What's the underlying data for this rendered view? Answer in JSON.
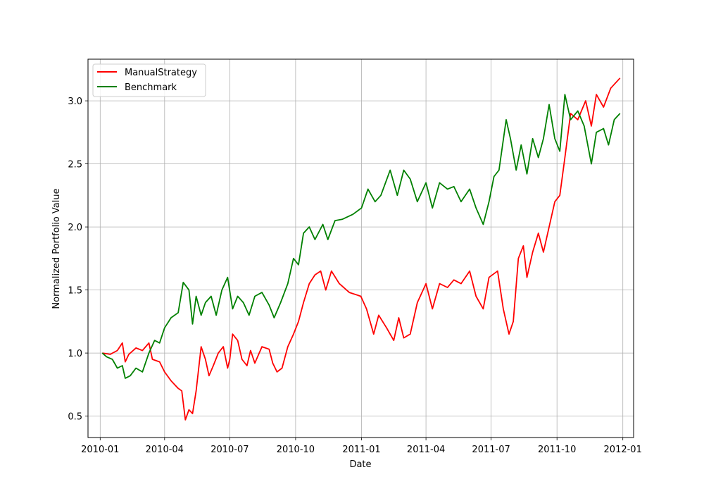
{
  "chart_data": {
    "type": "line",
    "title": "",
    "xlabel": "Date",
    "ylabel": "Normalized Portfolio Value",
    "x_range": [
      "2009-12-15",
      "2012-01-16"
    ],
    "ylim": [
      0.33,
      3.33
    ],
    "grid": true,
    "legend_position": "top-left",
    "x_ticks": [
      {
        "date": "2010-01-01",
        "label": "2010-01"
      },
      {
        "date": "2010-04-01",
        "label": "2010-04"
      },
      {
        "date": "2010-07-01",
        "label": "2010-07"
      },
      {
        "date": "2010-10-01",
        "label": "2010-10"
      },
      {
        "date": "2011-01-01",
        "label": "2011-01"
      },
      {
        "date": "2011-04-01",
        "label": "2011-04"
      },
      {
        "date": "2011-07-01",
        "label": "2011-07"
      },
      {
        "date": "2011-10-01",
        "label": "2011-10"
      },
      {
        "date": "2012-01-01",
        "label": "2012-01"
      }
    ],
    "y_ticks": [
      {
        "value": 0.5,
        "label": "0.5"
      },
      {
        "value": 1.0,
        "label": "1.0"
      },
      {
        "value": 1.5,
        "label": "1.5"
      },
      {
        "value": 2.0,
        "label": "2.0"
      },
      {
        "value": 2.5,
        "label": "2.5"
      },
      {
        "value": 3.0,
        "label": "3.0"
      }
    ],
    "series": [
      {
        "name": "ManualStrategy",
        "color": "#ff0000",
        "points": [
          [
            "2010-01-04",
            1.0
          ],
          [
            "2010-01-15",
            0.99
          ],
          [
            "2010-01-25",
            1.02
          ],
          [
            "2010-02-01",
            1.08
          ],
          [
            "2010-02-05",
            0.93
          ],
          [
            "2010-02-10",
            0.99
          ],
          [
            "2010-02-20",
            1.04
          ],
          [
            "2010-03-01",
            1.02
          ],
          [
            "2010-03-10",
            1.08
          ],
          [
            "2010-03-15",
            0.95
          ],
          [
            "2010-03-25",
            0.93
          ],
          [
            "2010-04-01",
            0.85
          ],
          [
            "2010-04-10",
            0.78
          ],
          [
            "2010-04-20",
            0.72
          ],
          [
            "2010-04-25",
            0.7
          ],
          [
            "2010-04-30",
            0.47
          ],
          [
            "2010-05-05",
            0.55
          ],
          [
            "2010-05-10",
            0.52
          ],
          [
            "2010-05-15",
            0.7
          ],
          [
            "2010-05-22",
            1.05
          ],
          [
            "2010-05-28",
            0.95
          ],
          [
            "2010-06-02",
            0.82
          ],
          [
            "2010-06-08",
            0.9
          ],
          [
            "2010-06-15",
            1.0
          ],
          [
            "2010-06-22",
            1.05
          ],
          [
            "2010-06-28",
            0.88
          ],
          [
            "2010-07-01",
            0.95
          ],
          [
            "2010-07-05",
            1.15
          ],
          [
            "2010-07-12",
            1.1
          ],
          [
            "2010-07-18",
            0.95
          ],
          [
            "2010-07-25",
            0.9
          ],
          [
            "2010-07-30",
            1.02
          ],
          [
            "2010-08-05",
            0.92
          ],
          [
            "2010-08-15",
            1.05
          ],
          [
            "2010-08-25",
            1.03
          ],
          [
            "2010-08-30",
            0.92
          ],
          [
            "2010-09-05",
            0.85
          ],
          [
            "2010-09-12",
            0.88
          ],
          [
            "2010-09-20",
            1.05
          ],
          [
            "2010-09-28",
            1.15
          ],
          [
            "2010-10-05",
            1.25
          ],
          [
            "2010-10-12",
            1.4
          ],
          [
            "2010-10-20",
            1.55
          ],
          [
            "2010-10-28",
            1.62
          ],
          [
            "2010-11-05",
            1.65
          ],
          [
            "2010-11-12",
            1.5
          ],
          [
            "2010-11-20",
            1.65
          ],
          [
            "2010-12-01",
            1.55
          ],
          [
            "2010-12-15",
            1.48
          ],
          [
            "2010-12-31",
            1.45
          ],
          [
            "2011-01-08",
            1.35
          ],
          [
            "2011-01-18",
            1.15
          ],
          [
            "2011-01-25",
            1.3
          ],
          [
            "2011-02-05",
            1.2
          ],
          [
            "2011-02-15",
            1.1
          ],
          [
            "2011-02-22",
            1.28
          ],
          [
            "2011-03-01",
            1.12
          ],
          [
            "2011-03-10",
            1.15
          ],
          [
            "2011-03-20",
            1.4
          ],
          [
            "2011-04-01",
            1.55
          ],
          [
            "2011-04-10",
            1.35
          ],
          [
            "2011-04-20",
            1.55
          ],
          [
            "2011-05-01",
            1.52
          ],
          [
            "2011-05-10",
            1.58
          ],
          [
            "2011-05-20",
            1.55
          ],
          [
            "2011-06-01",
            1.65
          ],
          [
            "2011-06-10",
            1.45
          ],
          [
            "2011-06-20",
            1.35
          ],
          [
            "2011-06-28",
            1.6
          ],
          [
            "2011-07-10",
            1.65
          ],
          [
            "2011-07-18",
            1.35
          ],
          [
            "2011-07-26",
            1.15
          ],
          [
            "2011-08-01",
            1.25
          ],
          [
            "2011-08-08",
            1.75
          ],
          [
            "2011-08-15",
            1.85
          ],
          [
            "2011-08-20",
            1.6
          ],
          [
            "2011-08-28",
            1.8
          ],
          [
            "2011-09-05",
            1.95
          ],
          [
            "2011-09-12",
            1.8
          ],
          [
            "2011-09-20",
            2.0
          ],
          [
            "2011-09-28",
            2.2
          ],
          [
            "2011-10-05",
            2.25
          ],
          [
            "2011-10-12",
            2.55
          ],
          [
            "2011-10-20",
            2.9
          ],
          [
            "2011-10-30",
            2.85
          ],
          [
            "2011-11-10",
            3.0
          ],
          [
            "2011-11-18",
            2.8
          ],
          [
            "2011-11-25",
            3.05
          ],
          [
            "2011-12-05",
            2.95
          ],
          [
            "2011-12-15",
            3.1
          ],
          [
            "2011-12-28",
            3.18
          ]
        ]
      },
      {
        "name": "Benchmark",
        "color": "#008000",
        "points": [
          [
            "2010-01-04",
            1.0
          ],
          [
            "2010-01-10",
            0.97
          ],
          [
            "2010-01-18",
            0.95
          ],
          [
            "2010-01-25",
            0.88
          ],
          [
            "2010-02-01",
            0.9
          ],
          [
            "2010-02-05",
            0.8
          ],
          [
            "2010-02-12",
            0.82
          ],
          [
            "2010-02-20",
            0.88
          ],
          [
            "2010-03-01",
            0.85
          ],
          [
            "2010-03-10",
            1.0
          ],
          [
            "2010-03-18",
            1.1
          ],
          [
            "2010-03-25",
            1.08
          ],
          [
            "2010-04-01",
            1.2
          ],
          [
            "2010-04-10",
            1.28
          ],
          [
            "2010-04-20",
            1.32
          ],
          [
            "2010-04-27",
            1.56
          ],
          [
            "2010-05-05",
            1.5
          ],
          [
            "2010-05-10",
            1.23
          ],
          [
            "2010-05-15",
            1.45
          ],
          [
            "2010-05-22",
            1.3
          ],
          [
            "2010-05-28",
            1.4
          ],
          [
            "2010-06-05",
            1.45
          ],
          [
            "2010-06-12",
            1.3
          ],
          [
            "2010-06-20",
            1.5
          ],
          [
            "2010-06-28",
            1.6
          ],
          [
            "2010-07-05",
            1.35
          ],
          [
            "2010-07-12",
            1.45
          ],
          [
            "2010-07-20",
            1.4
          ],
          [
            "2010-07-28",
            1.3
          ],
          [
            "2010-08-05",
            1.45
          ],
          [
            "2010-08-15",
            1.48
          ],
          [
            "2010-08-25",
            1.38
          ],
          [
            "2010-09-01",
            1.28
          ],
          [
            "2010-09-10",
            1.4
          ],
          [
            "2010-09-20",
            1.55
          ],
          [
            "2010-09-28",
            1.75
          ],
          [
            "2010-10-05",
            1.7
          ],
          [
            "2010-10-12",
            1.95
          ],
          [
            "2010-10-20",
            2.0
          ],
          [
            "2010-10-28",
            1.9
          ],
          [
            "2010-11-08",
            2.02
          ],
          [
            "2010-11-15",
            1.9
          ],
          [
            "2010-11-25",
            2.05
          ],
          [
            "2010-12-05",
            2.06
          ],
          [
            "2010-12-20",
            2.1
          ],
          [
            "2011-01-01",
            2.15
          ],
          [
            "2011-01-10",
            2.3
          ],
          [
            "2011-01-20",
            2.2
          ],
          [
            "2011-01-28",
            2.25
          ],
          [
            "2011-02-10",
            2.45
          ],
          [
            "2011-02-20",
            2.25
          ],
          [
            "2011-03-01",
            2.45
          ],
          [
            "2011-03-10",
            2.38
          ],
          [
            "2011-03-20",
            2.2
          ],
          [
            "2011-04-01",
            2.35
          ],
          [
            "2011-04-10",
            2.15
          ],
          [
            "2011-04-20",
            2.35
          ],
          [
            "2011-05-01",
            2.3
          ],
          [
            "2011-05-10",
            2.32
          ],
          [
            "2011-05-20",
            2.2
          ],
          [
            "2011-06-01",
            2.3
          ],
          [
            "2011-06-10",
            2.15
          ],
          [
            "2011-06-20",
            2.02
          ],
          [
            "2011-06-28",
            2.2
          ],
          [
            "2011-07-05",
            2.4
          ],
          [
            "2011-07-12",
            2.45
          ],
          [
            "2011-07-22",
            2.85
          ],
          [
            "2011-07-28",
            2.7
          ],
          [
            "2011-08-05",
            2.45
          ],
          [
            "2011-08-12",
            2.65
          ],
          [
            "2011-08-20",
            2.42
          ],
          [
            "2011-08-28",
            2.7
          ],
          [
            "2011-09-05",
            2.55
          ],
          [
            "2011-09-12",
            2.7
          ],
          [
            "2011-09-20",
            2.97
          ],
          [
            "2011-09-28",
            2.7
          ],
          [
            "2011-10-05",
            2.6
          ],
          [
            "2011-10-12",
            3.05
          ],
          [
            "2011-10-20",
            2.85
          ],
          [
            "2011-10-30",
            2.92
          ],
          [
            "2011-11-08",
            2.8
          ],
          [
            "2011-11-18",
            2.5
          ],
          [
            "2011-11-25",
            2.75
          ],
          [
            "2011-12-05",
            2.78
          ],
          [
            "2011-12-12",
            2.65
          ],
          [
            "2011-12-20",
            2.85
          ],
          [
            "2011-12-28",
            2.9
          ]
        ]
      }
    ]
  }
}
